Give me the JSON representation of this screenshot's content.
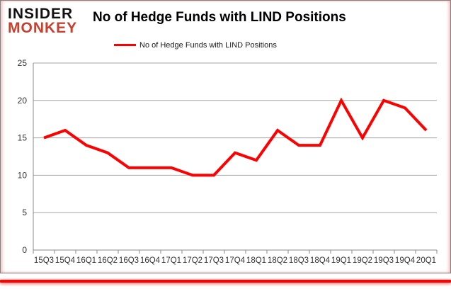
{
  "logo": {
    "line1": "INSIDER",
    "line2": "MONKEY",
    "line1_color": "#111111",
    "line2_color": "#c5402f"
  },
  "title": "No of Hedge Funds with LIND Positions",
  "legend": {
    "label": "No of Hedge Funds with LIND Positions",
    "marker_color": "#ff0000"
  },
  "chart_data": {
    "type": "line",
    "title": "No of Hedge Funds with LIND Positions",
    "categories": [
      "15Q3",
      "15Q4",
      "16Q1",
      "16Q2",
      "16Q3",
      "16Q4",
      "17Q1",
      "17Q2",
      "17Q3",
      "17Q4",
      "18Q1",
      "18Q2",
      "18Q3",
      "18Q4",
      "19Q1",
      "19Q2",
      "19Q3",
      "19Q4",
      "20Q1"
    ],
    "series": [
      {
        "name": "No of Hedge Funds with LIND Positions",
        "color": "#ff0000",
        "values": [
          15,
          16,
          14,
          13,
          11,
          11,
          11,
          10,
          10,
          13,
          12,
          16,
          14,
          14,
          20,
          15,
          20,
          19,
          16
        ]
      }
    ],
    "xlabel": "",
    "ylabel": "",
    "ylim": [
      0,
      25
    ],
    "yticks": [
      0,
      5,
      10,
      15,
      20,
      25
    ],
    "grid": true,
    "legend_position": "top",
    "gridline_color": "#a3a3a3",
    "axis_color": "#8a8a8a",
    "tick_label_color": "#333333"
  },
  "decor": {
    "bottom_rule_color": "#ff0000",
    "panel_border_color": "#828282"
  }
}
